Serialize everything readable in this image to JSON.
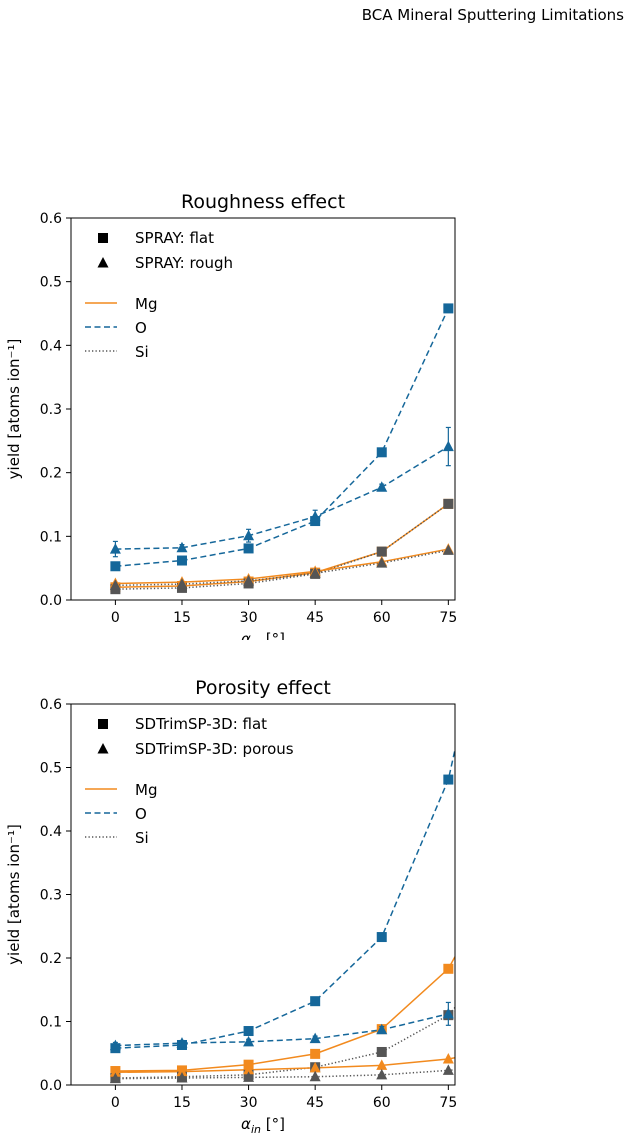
{
  "header": {
    "running_title": "BCA Mineral Sputtering Limitations"
  },
  "chart_data": [
    {
      "type": "line",
      "title": "Roughness effect",
      "xlabel": "α_in [°]",
      "ylabel": "yield [atoms ion⁻¹]",
      "xlim": [
        -10,
        76.5
      ],
      "ylim": [
        0,
        0.6
      ],
      "x_ticks": [
        0,
        15,
        30,
        45,
        60,
        75
      ],
      "y_ticks": [
        0.0,
        0.1,
        0.2,
        0.3,
        0.4,
        0.5,
        0.6
      ],
      "x_tick_labels": [
        "0",
        "15",
        "30",
        "45",
        "60",
        "75"
      ],
      "y_tick_labels": [
        "0.0",
        "0.1",
        "0.2",
        "0.3",
        "0.4",
        "0.5",
        "0.6"
      ],
      "grid": false,
      "legend_placement": "top-left",
      "legend": {
        "markers": [
          {
            "marker": "square",
            "label": "SPRAY: flat"
          },
          {
            "marker": "triangle",
            "label": "SPRAY: rough"
          }
        ],
        "lines": [
          {
            "style": "solid",
            "color": "#f28a1e",
            "label": "Mg"
          },
          {
            "style": "dashed",
            "color": "#15679a",
            "label": "O"
          },
          {
            "style": "dotted",
            "color": "#555555",
            "label": "Si"
          }
        ]
      },
      "x": [
        0,
        15,
        30,
        45,
        60,
        75
      ],
      "series": [
        {
          "element": "Mg",
          "surface": "flat",
          "marker": "square",
          "line": "solid",
          "color": "#f28a1e",
          "marker_color": "#f28a1e",
          "values": [
            0.02,
            0.022,
            0.029,
            0.043,
            0.076,
            0.151
          ]
        },
        {
          "element": "O",
          "surface": "flat",
          "marker": "square",
          "line": "dashed",
          "color": "#15679a",
          "marker_color": "#15679a",
          "values": [
            0.053,
            0.062,
            0.081,
            0.124,
            0.232,
            0.458
          ]
        },
        {
          "element": "Si",
          "surface": "flat",
          "marker": "square",
          "line": "dotted",
          "color": "#555555",
          "marker_color": "#555555",
          "values": [
            0.017,
            0.019,
            0.026,
            0.041,
            0.076,
            0.151
          ]
        },
        {
          "element": "Mg",
          "surface": "rough",
          "marker": "triangle",
          "line": "solid",
          "color": "#f28a1e",
          "marker_color": "#f28a1e",
          "values": [
            0.026,
            0.028,
            0.033,
            0.045,
            0.06,
            0.08
          ]
        },
        {
          "element": "O",
          "surface": "rough",
          "marker": "triangle",
          "line": "dashed",
          "color": "#15679a",
          "marker_color": "#15679a",
          "values": [
            0.08,
            0.082,
            0.101,
            0.131,
            0.177,
            0.241
          ],
          "errors": [
            0.012,
            0.005,
            0.01,
            0.01,
            0.005,
            0.03
          ]
        },
        {
          "element": "Si",
          "surface": "rough",
          "marker": "triangle",
          "line": "dotted",
          "color": "#555555",
          "marker_color": "#555555",
          "values": [
            0.023,
            0.025,
            0.03,
            0.042,
            0.058,
            0.078
          ]
        }
      ]
    },
    {
      "type": "line",
      "title": "Porosity effect",
      "xlabel": "α_in [°]",
      "ylabel": "yield [atoms ion⁻¹]",
      "xlim": [
        -10,
        76.5
      ],
      "ylim": [
        0,
        0.6
      ],
      "x_ticks": [
        0,
        15,
        30,
        45,
        60,
        75
      ],
      "y_ticks": [
        0.0,
        0.1,
        0.2,
        0.3,
        0.4,
        0.5,
        0.6
      ],
      "x_tick_labels": [
        "0",
        "15",
        "30",
        "45",
        "60",
        "75"
      ],
      "y_tick_labels": [
        "0.0",
        "0.1",
        "0.2",
        "0.3",
        "0.4",
        "0.5",
        "0.6"
      ],
      "grid": false,
      "legend_placement": "top-left",
      "legend": {
        "markers": [
          {
            "marker": "square",
            "label": "SDTrimSP-3D: flat"
          },
          {
            "marker": "triangle",
            "label": "SDTrimSP-3D: porous"
          }
        ],
        "lines": [
          {
            "style": "solid",
            "color": "#f28a1e",
            "label": "Mg"
          },
          {
            "style": "dashed",
            "color": "#15679a",
            "label": "O"
          },
          {
            "style": "dotted",
            "color": "#555555",
            "label": "Si"
          }
        ]
      },
      "x": [
        0,
        15,
        30,
        45,
        60,
        75
      ],
      "series": [
        {
          "element": "Mg",
          "surface": "flat",
          "marker": "square",
          "line": "solid",
          "color": "#f28a1e",
          "marker_color": "#f28a1e",
          "values": [
            0.022,
            0.023,
            0.032,
            0.049,
            0.088,
            0.183
          ],
          "extends_to": [
            76.5,
            0.202
          ]
        },
        {
          "element": "O",
          "surface": "flat",
          "marker": "square",
          "line": "dashed",
          "color": "#15679a",
          "marker_color": "#15679a",
          "values": [
            0.058,
            0.063,
            0.085,
            0.132,
            0.233,
            0.481
          ],
          "extends_to": [
            76.5,
            0.528
          ]
        },
        {
          "element": "Si",
          "surface": "flat",
          "marker": "square",
          "line": "dotted",
          "color": "#555555",
          "marker_color": "#555555",
          "values": [
            0.011,
            0.013,
            0.016,
            0.028,
            0.052,
            0.11
          ],
          "extends_to": [
            76.5,
            0.122
          ]
        },
        {
          "element": "Mg",
          "surface": "porous",
          "marker": "triangle",
          "line": "solid",
          "color": "#f28a1e",
          "marker_color": "#f28a1e",
          "values": [
            0.02,
            0.021,
            0.024,
            0.027,
            0.031,
            0.041
          ],
          "extends_to": [
            76.5,
            0.043
          ]
        },
        {
          "element": "O",
          "surface": "porous",
          "marker": "triangle",
          "line": "dashed",
          "color": "#15679a",
          "marker_color": "#15679a",
          "values": [
            0.062,
            0.066,
            0.068,
            0.073,
            0.087,
            0.112
          ],
          "errors": [
            0.005,
            0.004,
            0.004,
            0.004,
            0.005,
            0.018
          ],
          "extends_to": [
            76.5,
            0.115
          ]
        },
        {
          "element": "Si",
          "surface": "porous",
          "marker": "triangle",
          "line": "dotted",
          "color": "#555555",
          "marker_color": "#555555",
          "values": [
            0.01,
            0.011,
            0.012,
            0.013,
            0.016,
            0.023
          ],
          "extends_to": [
            76.5,
            0.024
          ]
        }
      ]
    }
  ]
}
